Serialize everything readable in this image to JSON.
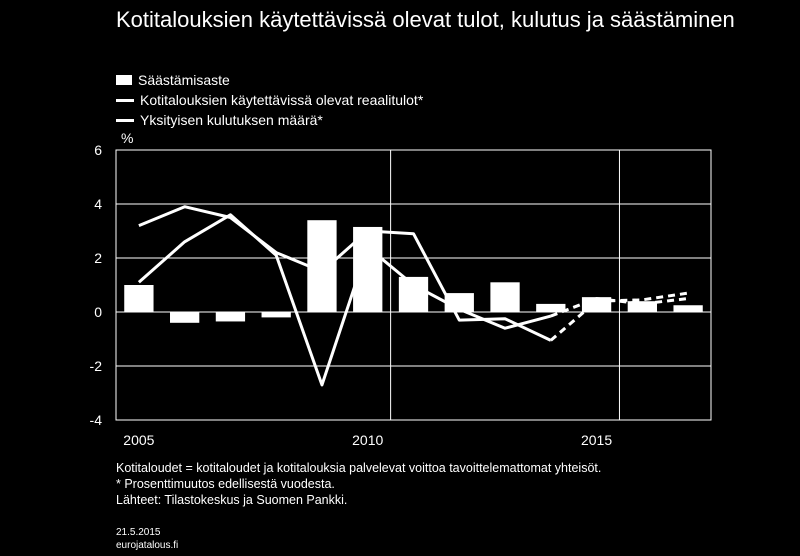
{
  "title": "Kotitalouksien käytettävissä olevat tulot, kulutus ja säästäminen",
  "unit": "%",
  "legend": [
    {
      "label": "Säästämisaste",
      "kind": "bar"
    },
    {
      "label": "Kotitalouksien käytettävissä olevat reaalitulot*",
      "kind": "line"
    },
    {
      "label": "Yksityisen kulutuksen määrä*",
      "kind": "line"
    }
  ],
  "notes": [
    "Kotitaloudet = kotitaloudet ja kotitalouksia palvelevat voittoa tavoittelemattomat yhteisöt.",
    "* Prosenttimuutos edellisestä vuodesta.",
    "Lähteet: Tilastokeskus ja Suomen Pankki."
  ],
  "footer": {
    "date": "21.5.2015",
    "site": "eurojatalous.fi"
  },
  "colors": {
    "background": "#000000",
    "foreground": "#ffffff"
  },
  "chart_data": {
    "type": "bar",
    "title": "Kotitalouksien käytettävissä olevat tulot, kulutus ja säästäminen",
    "ylabel": "%",
    "ylim": [
      -4,
      6
    ],
    "yticks": [
      -4,
      -2,
      0,
      2,
      4,
      6
    ],
    "xticks": [
      2005,
      2010,
      2015
    ],
    "x": [
      2005,
      2006,
      2007,
      2008,
      2009,
      2010,
      2011,
      2012,
      2013,
      2014,
      2015,
      2016,
      2017
    ],
    "forecast_from": 2014,
    "grid": true,
    "legend_position": "top-left",
    "series": [
      {
        "name": "Säästämisaste",
        "type": "bar",
        "values": [
          1.0,
          -0.4,
          -0.35,
          -0.2,
          3.4,
          3.15,
          1.3,
          0.7,
          1.1,
          0.3,
          0.55,
          0.4,
          0.25
        ]
      },
      {
        "name": "Kotitalouksien käytettävissä olevat reaalitulot*",
        "type": "line",
        "values": [
          3.2,
          3.9,
          3.5,
          2.2,
          1.5,
          3.0,
          2.9,
          -0.3,
          -0.25,
          -1.05,
          0.4,
          0.45,
          0.7
        ]
      },
      {
        "name": "Yksityisen kulutuksen määrä*",
        "type": "line",
        "values": [
          1.1,
          2.6,
          3.6,
          2.1,
          -2.7,
          2.4,
          1.0,
          0.1,
          -0.6,
          -0.15,
          0.5,
          0.3,
          0.5
        ]
      }
    ]
  }
}
